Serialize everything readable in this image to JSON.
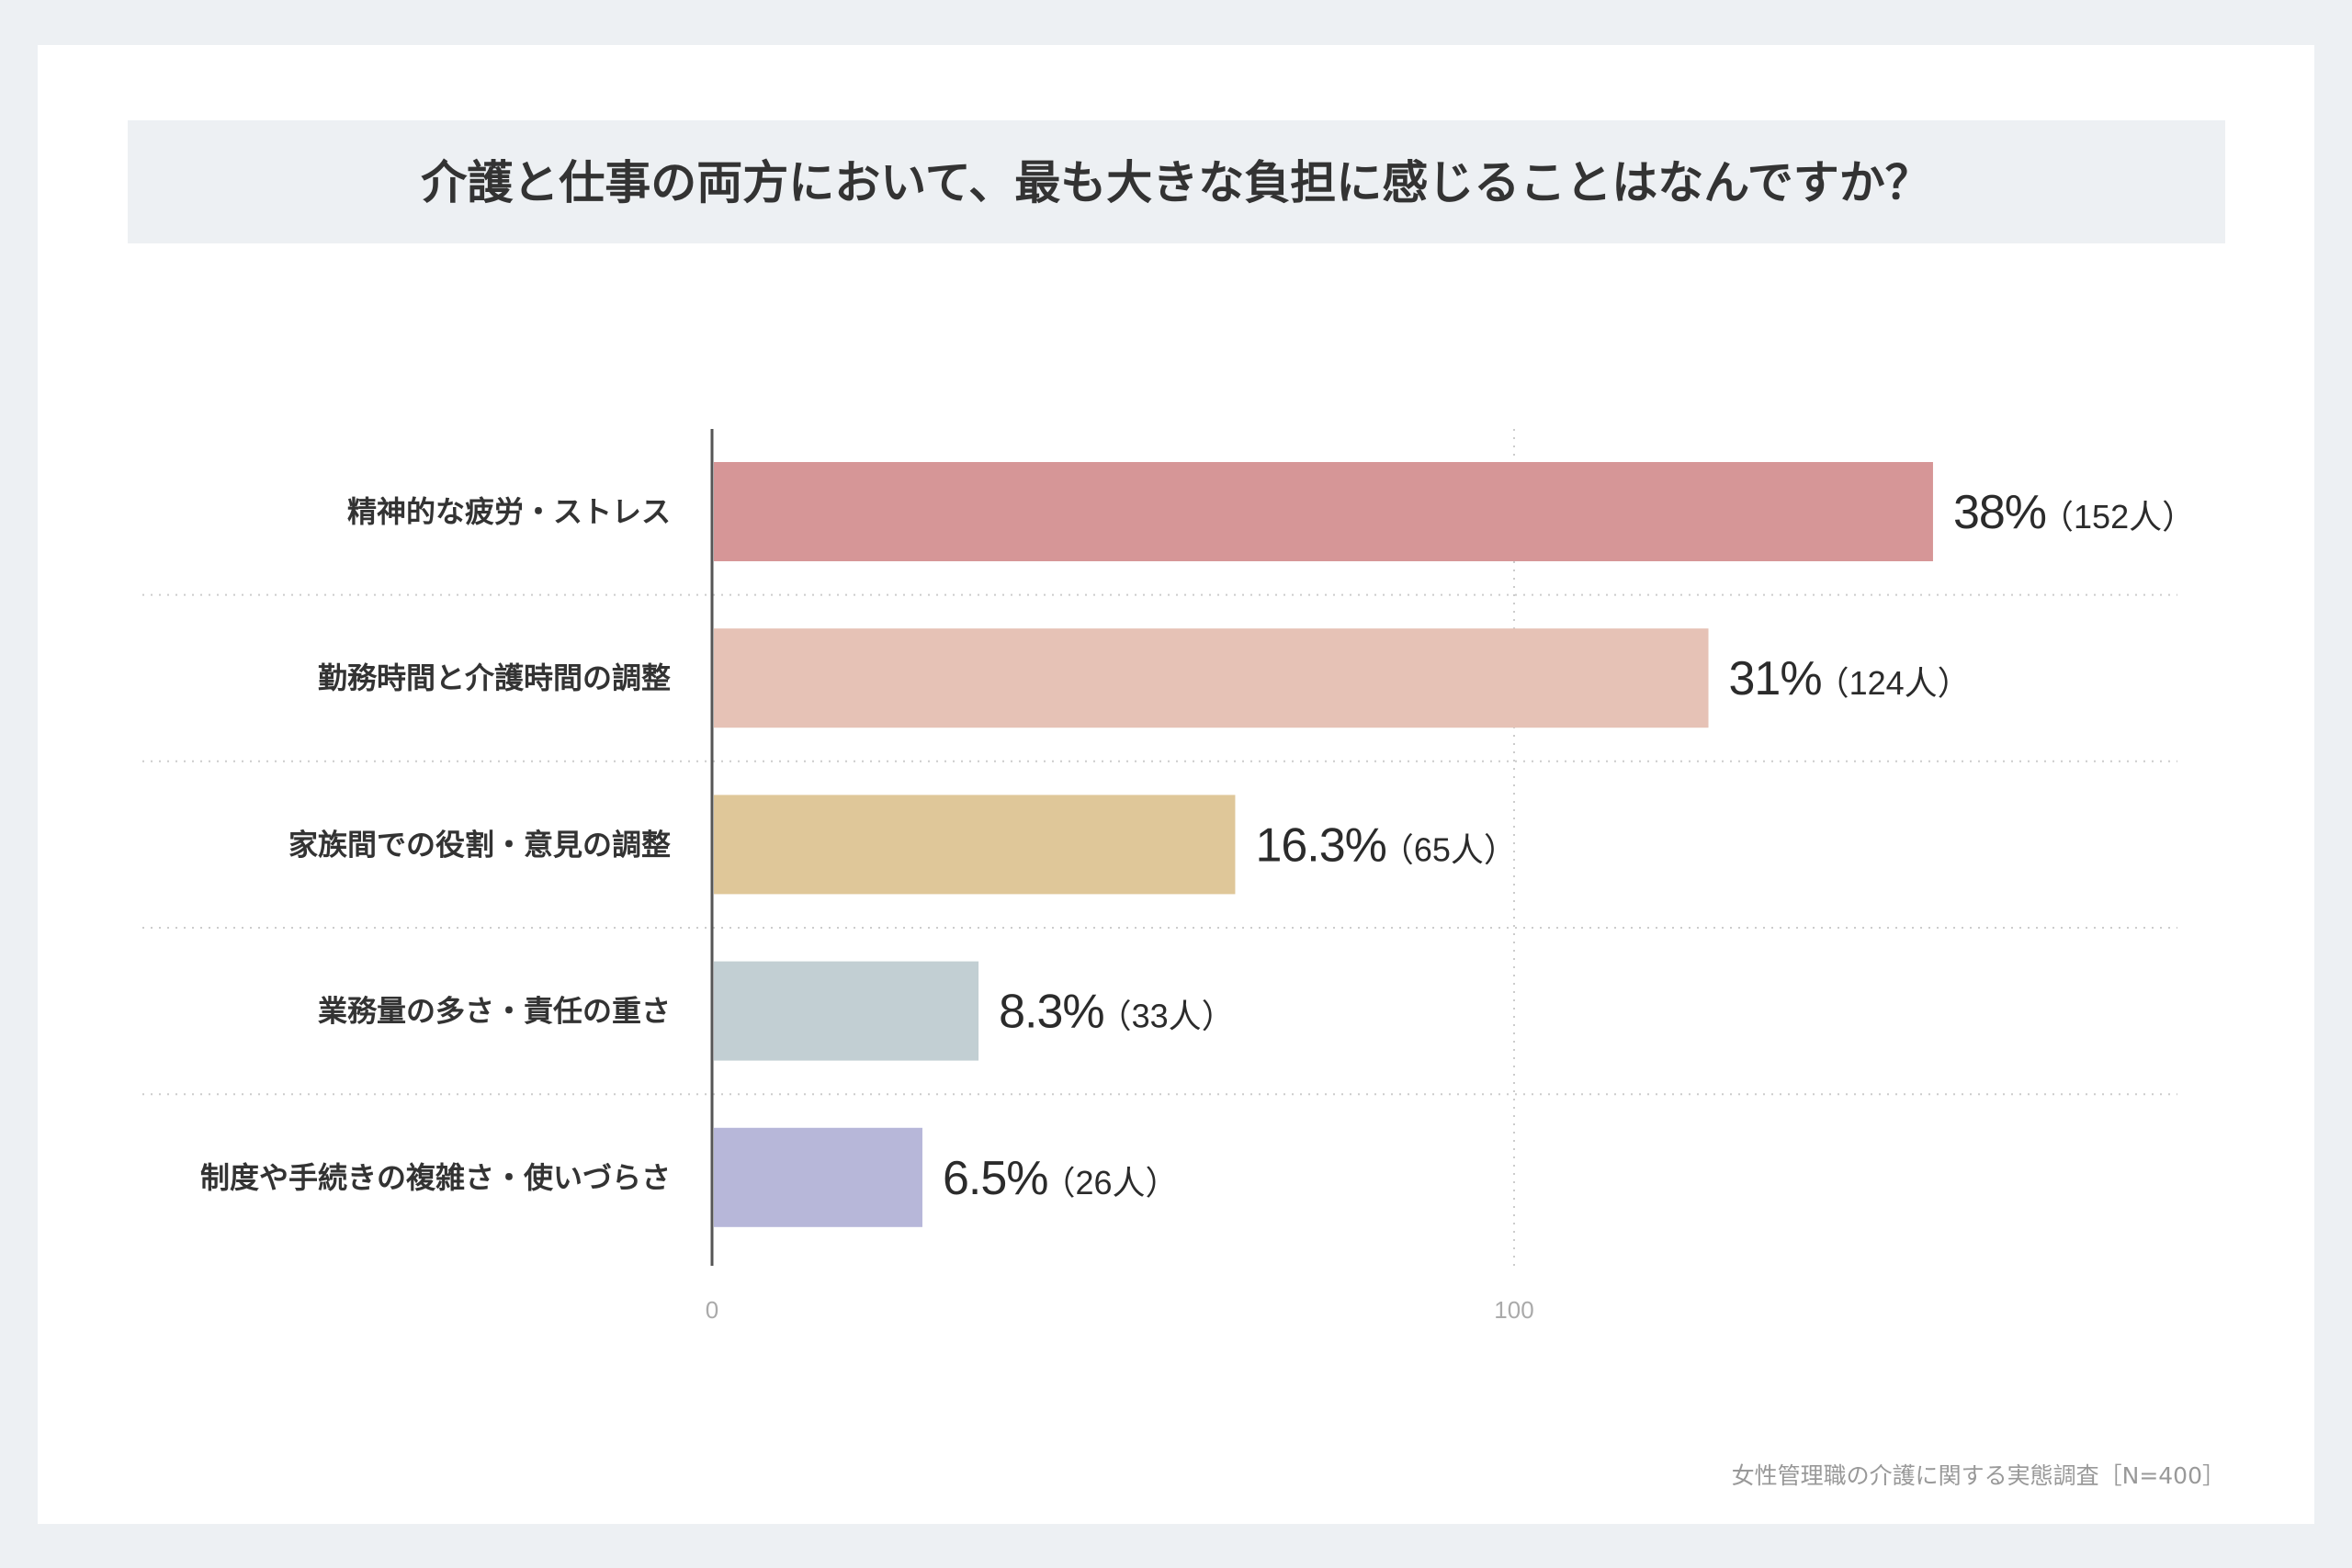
{
  "chart_data": {
    "type": "bar",
    "orientation": "horizontal",
    "title": "介護と仕事の両方において、最も大きな負担に感じることはなんですか？",
    "categories": [
      "精神的な疲労・ストレス",
      "勤務時間と介護時間の調整",
      "家族間での役割・意見の調整",
      "業務量の多さ・責任の重さ",
      "制度や手続きの複雑さ・使いづらさ"
    ],
    "values": [
      152,
      124,
      65,
      33,
      26
    ],
    "percent_labels": [
      "38%",
      "31%",
      "16.3%",
      "8.3%",
      "6.5%"
    ],
    "count_labels": [
      "（152人）",
      "（124人）",
      "（65人）",
      "（33人）",
      "（26人）"
    ],
    "colors": [
      "#d69697",
      "#e6c2b6",
      "#dfc799",
      "#c2cfd3",
      "#b7b7d9"
    ],
    "xlim": [
      0,
      176
    ],
    "xticks": [
      "0",
      "100"
    ],
    "xtick_values": [
      0,
      100
    ],
    "grid": true,
    "xlabel": "",
    "ylabel": ""
  },
  "footer": "女性管理職の介護に関する実態調査［N=400］"
}
